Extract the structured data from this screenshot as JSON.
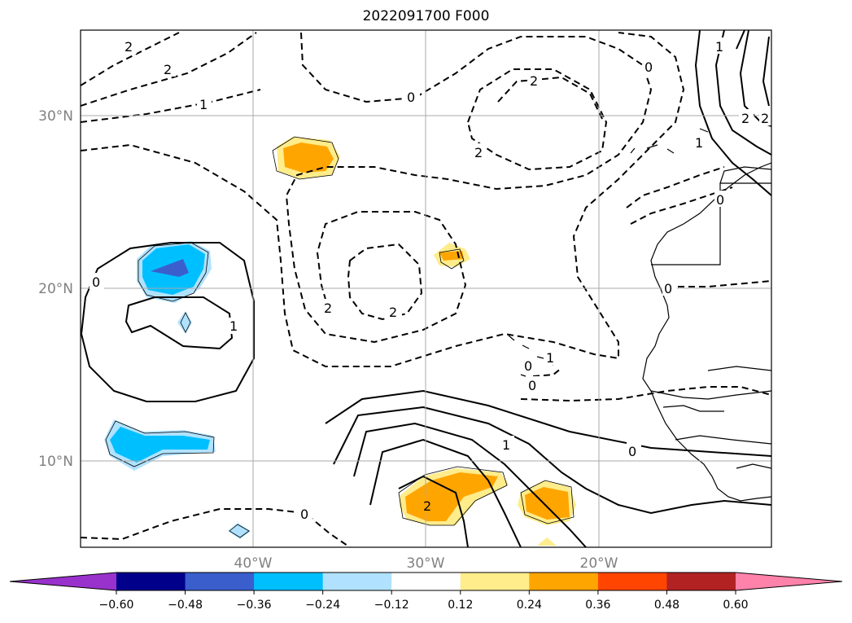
{
  "title": "2022091700 F000",
  "map": {
    "lon_range": [
      -50,
      -10
    ],
    "lat_range": [
      5,
      35
    ],
    "lon_ticks": [
      "40°W",
      "30°W",
      "20°W"
    ],
    "lat_ticks": [
      "30°N",
      "20°N",
      "10°N"
    ],
    "grid": true
  },
  "contour_labels": [
    "2",
    "2",
    "1",
    "0",
    "2",
    "2",
    "0",
    "2",
    "2",
    "0",
    "0",
    "1",
    "2",
    "0",
    "2",
    "1",
    "1",
    "0",
    "1",
    "2",
    "0",
    "1",
    "0",
    "0"
  ],
  "colorbar": {
    "ticks": [
      "−0.60",
      "−0.48",
      "−0.36",
      "−0.24",
      "−0.12",
      "0.12",
      "0.24",
      "0.36",
      "0.48",
      "0.60"
    ],
    "colors": [
      "#9932cc",
      "#00008b",
      "#3a5fcd",
      "#00bfff",
      "#b0e2ff",
      "#ffffff",
      "#ffec8b",
      "#ffa500",
      "#ff4500",
      "#b22222",
      "#ff82ab"
    ]
  }
}
